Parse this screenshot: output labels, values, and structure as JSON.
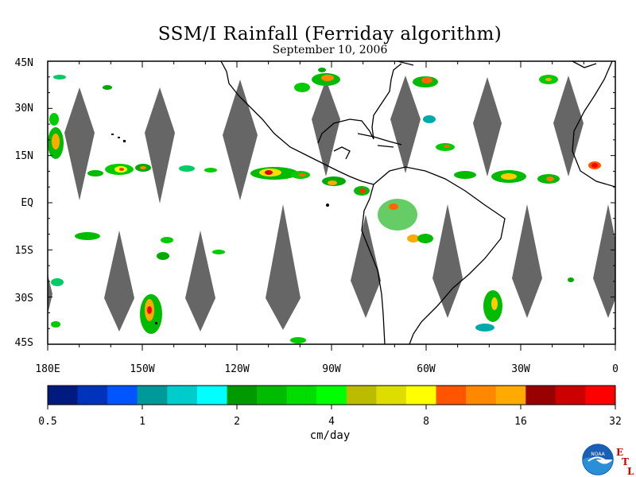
{
  "title": "SSM/I Rainfall (Ferriday algorithm)",
  "subtitle": "September 10, 2006",
  "lat_labels": [
    "45N",
    "30N",
    "15N",
    "EQ",
    "15S",
    "30S",
    "45S"
  ],
  "lat_values": [
    45,
    30,
    15,
    0,
    -15,
    -30,
    -45
  ],
  "lon_labels": [
    "180E",
    "150W",
    "120W",
    "90W",
    "60W",
    "30W",
    "0"
  ],
  "lon_values": [
    -180,
    -150,
    -120,
    -90,
    -60,
    -30,
    0
  ],
  "colorbar": {
    "tick_labels": [
      "0.5",
      "1",
      "2",
      "4",
      "8",
      "16",
      "32"
    ],
    "units": "cm/day",
    "colors": [
      "#001a80",
      "#0033bb",
      "#0055ff",
      "#009999",
      "#00cccc",
      "#00ffff",
      "#009900",
      "#00bb00",
      "#00dd00",
      "#00ff00",
      "#bbbb00",
      "#dddd00",
      "#ffff00",
      "#ff5500",
      "#ff8800",
      "#ffaa00",
      "#990000",
      "#cc0000",
      "#ff0000"
    ]
  },
  "logo": {
    "name": "NOAA",
    "letters": [
      "E",
      "T",
      "L"
    ]
  },
  "map_colors": {
    "swath_gap": "#666666",
    "coast": "#000000",
    "ocean": "#ffffff"
  }
}
